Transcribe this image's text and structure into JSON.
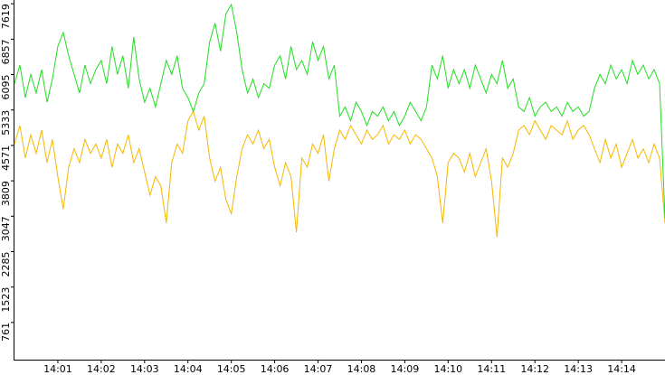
{
  "chart_data": {
    "type": "line",
    "x": [
      0,
      0.125,
      0.25,
      0.375,
      0.5,
      0.625,
      0.75,
      0.875,
      1,
      1.125,
      1.25,
      1.375,
      1.5,
      1.625,
      1.75,
      1.875,
      2,
      2.125,
      2.25,
      2.375,
      2.5,
      2.625,
      2.75,
      2.875,
      3,
      3.125,
      3.25,
      3.375,
      3.5,
      3.625,
      3.75,
      3.875,
      4,
      4.125,
      4.25,
      4.375,
      4.5,
      4.625,
      4.75,
      4.875,
      5,
      5.125,
      5.25,
      5.375,
      5.5,
      5.625,
      5.75,
      5.875,
      6,
      6.125,
      6.25,
      6.375,
      6.5,
      6.625,
      6.75,
      6.875,
      7,
      7.125,
      7.25,
      7.375,
      7.5,
      7.625,
      7.75,
      7.875,
      8,
      8.125,
      8.25,
      8.375,
      8.5,
      8.625,
      8.75,
      8.875,
      9,
      9.125,
      9.25,
      9.375,
      9.5,
      9.625,
      9.75,
      9.875,
      10,
      10.125,
      10.25,
      10.375,
      10.5,
      10.625,
      10.75,
      10.875,
      11,
      11.125,
      11.25,
      11.375,
      11.5,
      11.625,
      11.75,
      11.875,
      12,
      12.125,
      12.25,
      12.375,
      12.5,
      12.625,
      12.75,
      12.875,
      13,
      13.125,
      13.25,
      13.375,
      13.5,
      13.625,
      13.75,
      13.875,
      14,
      14.125,
      14.25,
      14.375,
      14.5,
      14.625,
      14.75,
      14.875,
      15
    ],
    "series": [
      {
        "color": "#f5b800",
        "values": [
          4600,
          5000,
          4300,
          4800,
          4400,
          4900,
          4200,
          4700,
          3900,
          3200,
          4100,
          4500,
          4200,
          4700,
          4400,
          4600,
          4300,
          4700,
          4100,
          4600,
          4400,
          4800,
          4200,
          4500,
          4000,
          3500,
          3900,
          3700,
          2900,
          4200,
          4600,
          4400,
          5100,
          5300,
          4900,
          5200,
          4300,
          3800,
          4100,
          3400,
          3100,
          3900,
          4500,
          4800,
          4600,
          4900,
          4500,
          4700,
          4100,
          3700,
          4200,
          3900,
          2700,
          4300,
          4100,
          4600,
          4400,
          4800,
          3800,
          4500,
          4900,
          4700,
          5000,
          4800,
          4600,
          4900,
          4700,
          4800,
          5000,
          4600,
          4800,
          4700,
          4900,
          4600,
          4800,
          4700,
          4500,
          4300,
          3900,
          2900,
          4200,
          4400,
          4300,
          4000,
          4400,
          3900,
          4200,
          4500,
          3800,
          2600,
          4300,
          4100,
          4400,
          4900,
          5000,
          4800,
          5100,
          4900,
          4700,
          5000,
          4900,
          4800,
          5100,
          4700,
          4900,
          5000,
          4800,
          4500,
          4200,
          4700,
          4300,
          4600,
          4100,
          4400,
          4700,
          4300,
          4500,
          4200,
          4600,
          4300,
          2900
        ]
      },
      {
        "color": "#22dd22",
        "values": [
          5900,
          6300,
          5600,
          6100,
          5700,
          6200,
          5500,
          6000,
          6700,
          7000,
          6500,
          6100,
          5700,
          6300,
          5900,
          6200,
          6400,
          5900,
          6700,
          6100,
          6500,
          5800,
          6900,
          6000,
          5500,
          5800,
          5400,
          5900,
          6400,
          6100,
          6500,
          5800,
          5600,
          5300,
          5700,
          5900,
          6800,
          7200,
          6600,
          7400,
          7600,
          7000,
          6200,
          5700,
          6000,
          5600,
          5900,
          5800,
          6300,
          6500,
          6000,
          6700,
          6200,
          6400,
          6100,
          6800,
          6400,
          6700,
          6000,
          6300,
          5200,
          5400,
          5100,
          5500,
          5300,
          5000,
          5300,
          5200,
          5400,
          5100,
          5300,
          5000,
          5200,
          5500,
          5300,
          5100,
          5400,
          6300,
          6000,
          6500,
          5800,
          6200,
          5900,
          6200,
          5800,
          6300,
          6000,
          5700,
          6100,
          5900,
          6400,
          5800,
          6000,
          5400,
          5300,
          5600,
          5200,
          5400,
          5500,
          5300,
          5400,
          5200,
          5500,
          5300,
          5400,
          5200,
          5300,
          5800,
          6100,
          5900,
          6300,
          6000,
          6200,
          5900,
          6400,
          6100,
          6300,
          6000,
          6200,
          5900,
          3000
        ]
      }
    ],
    "xlim": [
      0,
      15
    ],
    "xticks": [
      {
        "value": 1,
        "label": "14:01"
      },
      {
        "value": 2,
        "label": "14:02"
      },
      {
        "value": 3,
        "label": "14:03"
      },
      {
        "value": 4,
        "label": "14:04"
      },
      {
        "value": 5,
        "label": "14:05"
      },
      {
        "value": 6,
        "label": "14:06"
      },
      {
        "value": 7,
        "label": "14:07"
      },
      {
        "value": 8,
        "label": "14:08"
      },
      {
        "value": 9,
        "label": "14:09"
      },
      {
        "value": 10,
        "label": "14:10"
      },
      {
        "value": 11,
        "label": "14:11"
      },
      {
        "value": 12,
        "label": "14:12"
      },
      {
        "value": 13,
        "label": "14:13"
      },
      {
        "value": 14,
        "label": "14:14"
      }
    ],
    "ylim": [
      0,
      7700
    ],
    "yticks": [
      761,
      1523,
      2285,
      3047,
      3809,
      4571,
      5333,
      6095,
      6857,
      7619
    ],
    "grid": false
  }
}
